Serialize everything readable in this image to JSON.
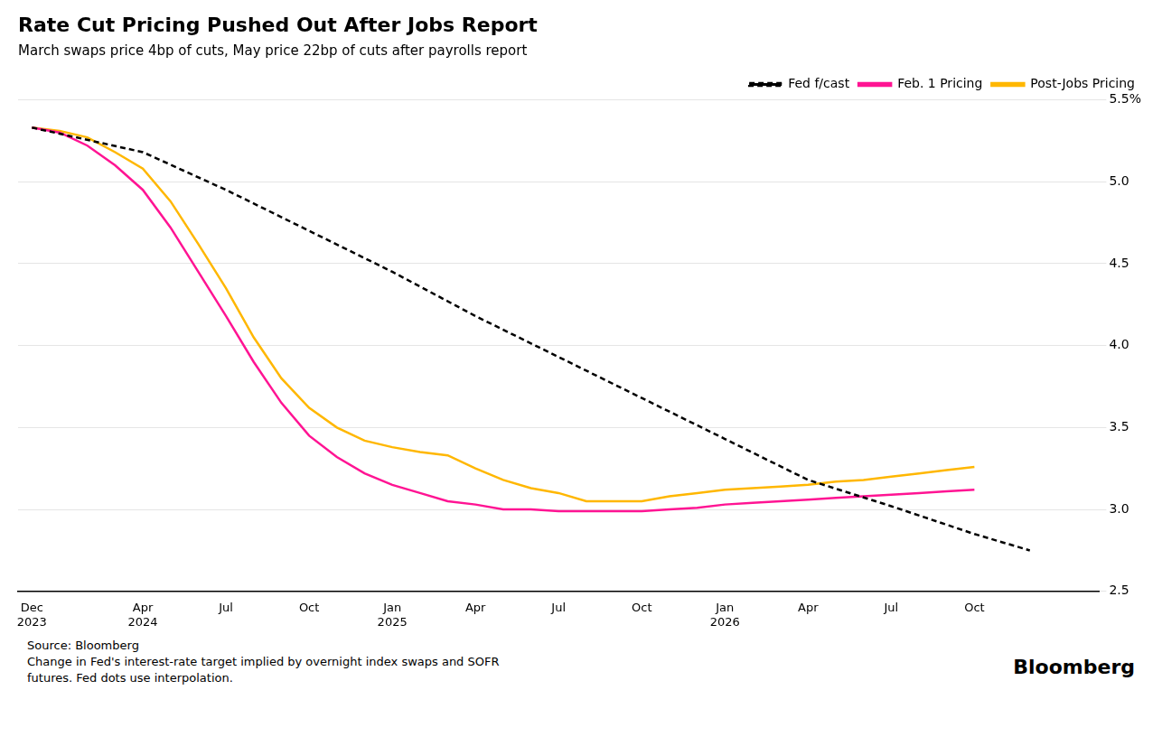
{
  "chart_data": {
    "type": "line",
    "title": "Rate Cut Pricing Pushed Out After Jobs Report",
    "subtitle": "March swaps price 4bp of cuts, May price 22bp of cuts after payrolls report",
    "annotations": [
      "Source: Bloomberg\nChange in Fed's interest-rate target implied by overnight index swaps and SOFR\nfutures. Fed dots use interpolation.",
      "Bloomberg"
    ],
    "series": [
      {
        "name": "Fed f/cast",
        "color": "#000000",
        "line_style": "dashed",
        "x": [
          0,
          4,
          7,
          10,
          13,
          16,
          19,
          22,
          25,
          28,
          31,
          34,
          36
        ],
        "values": [
          5.33,
          5.18,
          4.95,
          4.7,
          4.45,
          4.18,
          3.93,
          3.68,
          3.43,
          3.18,
          3.02,
          2.85,
          2.75
        ]
      },
      {
        "name": "Feb. 1 Pricing",
        "color": "#FF1493",
        "line_style": "solid",
        "x": [
          0,
          1,
          2,
          3,
          4,
          5,
          6,
          7,
          8,
          9,
          10,
          11,
          12,
          13,
          14,
          15,
          16,
          17,
          18,
          19,
          20,
          21,
          22,
          23,
          24,
          25,
          26,
          27,
          28,
          29,
          30,
          31,
          32,
          33,
          34
        ],
        "values": [
          5.33,
          5.3,
          5.22,
          5.1,
          4.95,
          4.72,
          4.45,
          4.18,
          3.9,
          3.65,
          3.45,
          3.32,
          3.22,
          3.15,
          3.1,
          3.05,
          3.03,
          3.0,
          3.0,
          2.99,
          2.99,
          2.99,
          2.99,
          3.0,
          3.01,
          3.03,
          3.04,
          3.05,
          3.06,
          3.07,
          3.08,
          3.09,
          3.1,
          3.11,
          3.12
        ]
      },
      {
        "name": "Post-Jobs Pricing",
        "color": "#FFB700",
        "line_style": "solid",
        "x": [
          0,
          1,
          2,
          3,
          4,
          5,
          6,
          7,
          8,
          9,
          10,
          11,
          12,
          13,
          14,
          15,
          16,
          17,
          18,
          19,
          20,
          21,
          22,
          23,
          24,
          25,
          26,
          27,
          28,
          29,
          30,
          31,
          32,
          33,
          34
        ],
        "values": [
          5.33,
          5.31,
          5.27,
          5.18,
          5.08,
          4.88,
          4.62,
          4.35,
          4.05,
          3.8,
          3.62,
          3.5,
          3.42,
          3.38,
          3.35,
          3.33,
          3.25,
          3.18,
          3.13,
          3.1,
          3.05,
          3.05,
          3.05,
          3.08,
          3.1,
          3.12,
          3.13,
          3.14,
          3.15,
          3.17,
          3.18,
          3.2,
          3.22,
          3.24,
          3.26
        ]
      }
    ],
    "xlim": [
      -0.5,
      38.5
    ],
    "xticks": [
      {
        "value": 0,
        "label": "Dec\n2023"
      },
      {
        "value": 4,
        "label": "Apr\n2024"
      },
      {
        "value": 7,
        "label": "Jul"
      },
      {
        "value": 10,
        "label": "Oct"
      },
      {
        "value": 13,
        "label": "Jan\n2025"
      },
      {
        "value": 16,
        "label": "Apr"
      },
      {
        "value": 19,
        "label": "Jul"
      },
      {
        "value": 22,
        "label": "Oct"
      },
      {
        "value": 25,
        "label": "Jan\n2026"
      },
      {
        "value": 28,
        "label": "Apr"
      },
      {
        "value": 31,
        "label": "Jul"
      },
      {
        "value": 34,
        "label": "Oct"
      }
    ],
    "ylim": [
      2.5,
      5.5
    ],
    "yticks": [
      2.5,
      {
        "value": 3.0,
        "label": "3.0"
      },
      3.5,
      {
        "value": 4.0,
        "label": "4.0"
      },
      4.5,
      {
        "value": 5.0,
        "label": "5.0"
      },
      {
        "value": 5.5,
        "label": "5.5%"
      }
    ],
    "grid": "y",
    "legend": "top-right"
  }
}
